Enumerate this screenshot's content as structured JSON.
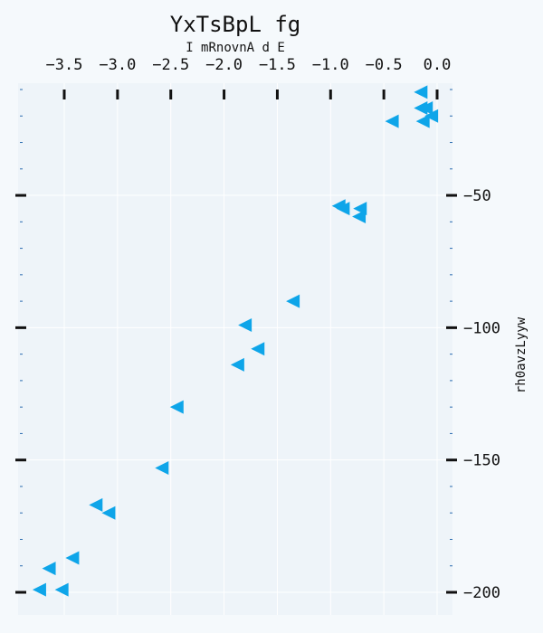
{
  "chart_data": {
    "type": "scatter",
    "title": "YxTsBpL fg",
    "xlabel": "I mRnovnA d E",
    "ylabel": "rh0avzLyyw",
    "x_axis_position": "top",
    "y_axis_position": "right",
    "xlim": [
      -3.85,
      0.0
    ],
    "ylim": [
      -200,
      -10
    ],
    "x_ticks": [
      -3.5,
      -3.0,
      -2.5,
      -2.0,
      -1.5,
      -1.0,
      -0.5,
      0.0
    ],
    "x_tick_labels": [
      "−3.5",
      "−3.0",
      "−2.5",
      "−2.0",
      "−1.5",
      "−1.0",
      "−0.5",
      "0.0"
    ],
    "y_ticks": [
      -50,
      -100,
      -150,
      -200
    ],
    "y_tick_labels": [
      "−50",
      "−100",
      "−150",
      "−200"
    ],
    "y_minor_step": 10,
    "grid": true,
    "marker": "triangle-left",
    "color": "#0ea5e9",
    "series": [
      {
        "points": [
          [
            -0.15,
            -17
          ],
          [
            -0.1,
            -17
          ],
          [
            -0.05,
            -20
          ],
          [
            -0.42,
            -22
          ],
          [
            -0.13,
            -22
          ],
          [
            -0.15,
            -11
          ],
          [
            -0.92,
            -54
          ],
          [
            -0.88,
            -55
          ],
          [
            -0.72,
            -55
          ],
          [
            -0.73,
            -58
          ],
          [
            -1.35,
            -90
          ],
          [
            -1.8,
            -99
          ],
          [
            -1.68,
            -108
          ],
          [
            -1.87,
            -114
          ],
          [
            -2.44,
            -130
          ],
          [
            -2.58,
            -153
          ],
          [
            -3.2,
            -167
          ],
          [
            -3.08,
            -170
          ],
          [
            -3.42,
            -187
          ],
          [
            -3.64,
            -191
          ],
          [
            -3.73,
            -199
          ],
          [
            -3.52,
            -199
          ]
        ]
      }
    ]
  }
}
